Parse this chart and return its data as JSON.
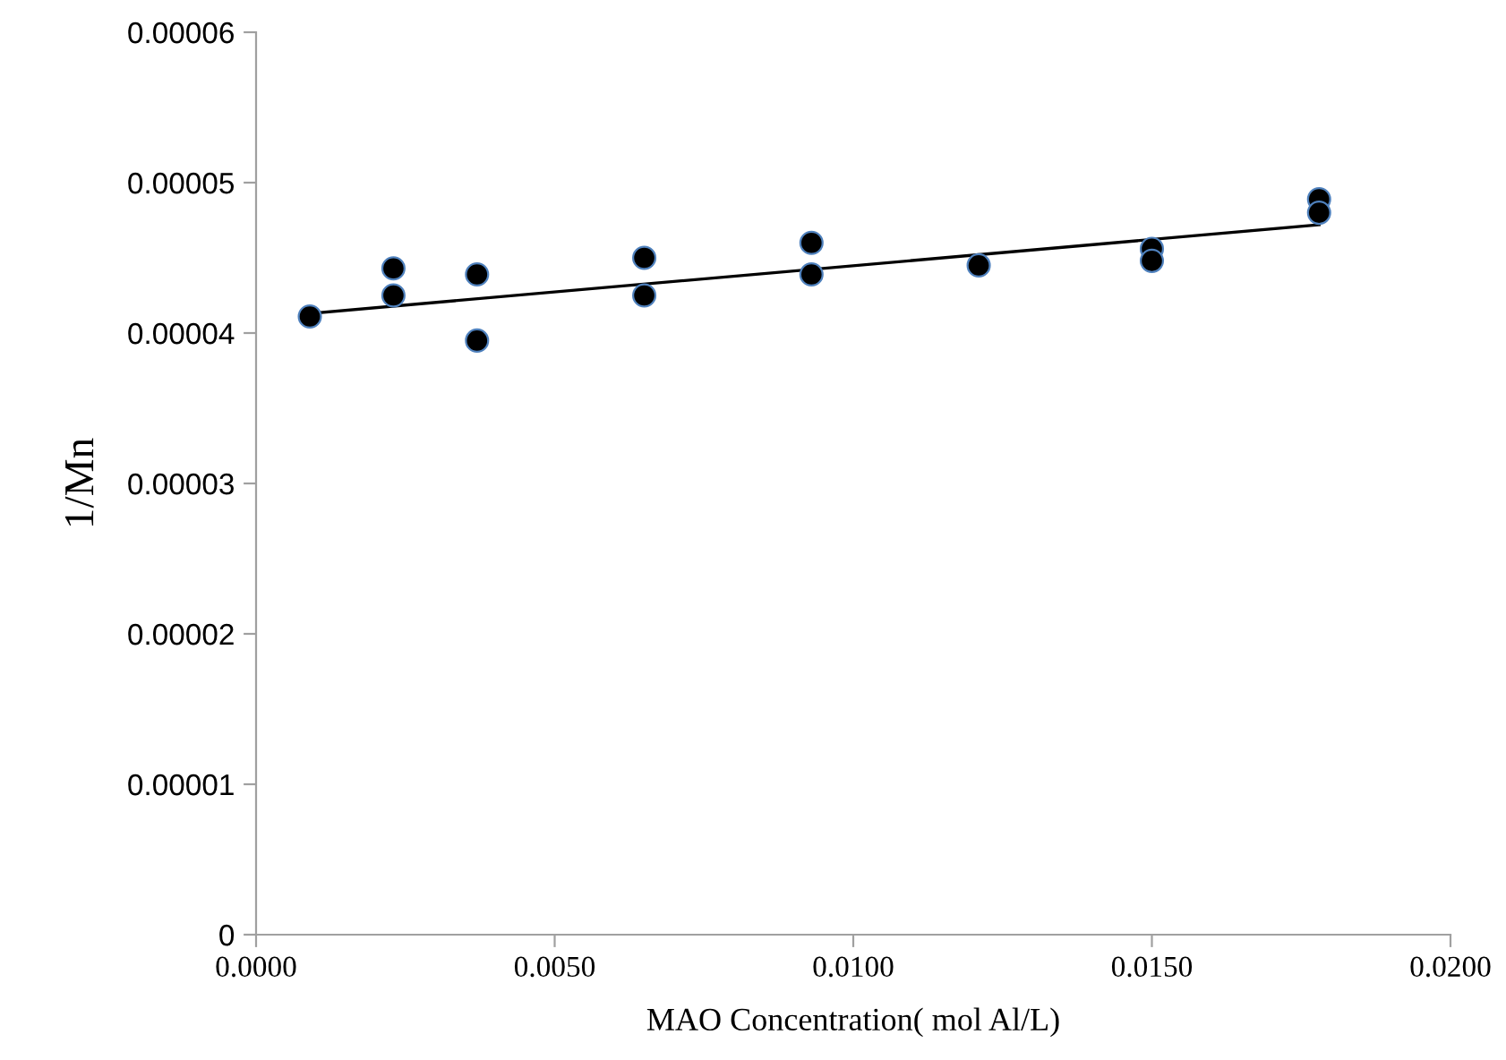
{
  "chart_data": {
    "type": "scatter",
    "xlabel": "MAO Concentration( mol Al/L)",
    "ylabel": "1/Mn",
    "xlim": [
      0,
      0.02
    ],
    "xticks": [
      {
        "value": 0,
        "label": "0.0000"
      },
      {
        "value": 0.005,
        "label": "0.0050"
      },
      {
        "value": 0.01,
        "label": "0.0100"
      },
      {
        "value": 0.015,
        "label": "0.0150"
      },
      {
        "value": 0.02,
        "label": "0.0200"
      }
    ],
    "ylim": [
      0,
      6e-05
    ],
    "yticks": [
      {
        "value": 0,
        "label": "0"
      },
      {
        "value": 1e-05,
        "label": "0.00001"
      },
      {
        "value": 2e-05,
        "label": "0.00002"
      },
      {
        "value": 3e-05,
        "label": "0.00003"
      },
      {
        "value": 4e-05,
        "label": "0.00004"
      },
      {
        "value": 5e-05,
        "label": "0.00005"
      },
      {
        "value": 6e-05,
        "label": "0.00006"
      }
    ],
    "grid": false,
    "legend": false,
    "series": [
      {
        "marker": "circle",
        "color": "#000000",
        "x": [
          0.0009,
          0.0023,
          0.0023,
          0.0037,
          0.0037,
          0.0065,
          0.0065,
          0.0093,
          0.0093,
          0.0121,
          0.015,
          0.015,
          0.0178,
          0.0178
        ],
        "values": [
          4.11e-05,
          4.43e-05,
          4.25e-05,
          4.39e-05,
          3.95e-05,
          4.5e-05,
          4.25e-05,
          4.6e-05,
          4.39e-05,
          4.45e-05,
          4.56e-05,
          4.48e-05,
          4.89e-05,
          4.8e-05
        ]
      },
      {
        "type": "line",
        "color": "#000000",
        "x": [
          0.0009,
          0.0178
        ],
        "values": [
          4.13e-05,
          4.72e-05
        ]
      }
    ]
  }
}
